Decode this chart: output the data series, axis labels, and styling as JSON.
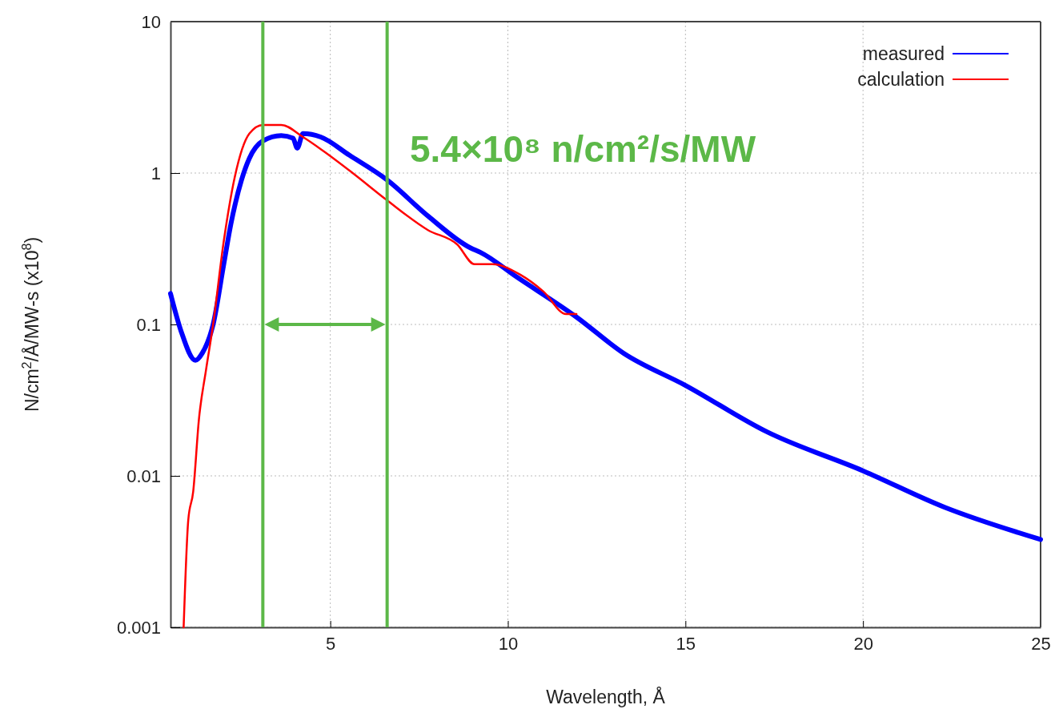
{
  "chart_data": {
    "type": "line",
    "xlabel": "Wavelength, Å",
    "ylabel": "N/cm$^{2}$/Å/MW-s (x10$^{8}$)",
    "log": "y",
    "grid": true,
    "legend": "top right",
    "line_style": "solid",
    "marker": "none",
    "xlim": [
      0.5,
      25
    ],
    "xticks": [
      5,
      10,
      15,
      20,
      25
    ],
    "ylim": [
      0.001,
      10
    ],
    "yticks": [
      0.001,
      0.01,
      0.1,
      1,
      10
    ],
    "series": [
      {
        "name": "measured",
        "color": "#0000ff",
        "x": [
          0.5,
          0.8,
          1.2,
          1.4,
          1.7,
          2.0,
          2.2,
          2.5,
          2.72,
          3.1,
          3.62,
          3.95,
          4.07,
          4.23,
          4.73,
          5.54,
          6.6,
          7.75,
          8.95,
          9.22,
          10.26,
          11.93,
          13.26,
          15,
          17.3,
          20,
          22.3,
          25
        ],
        "values": [
          0.16,
          0.09,
          0.058,
          0.065,
          0.1,
          0.25,
          0.46,
          0.9,
          1.25,
          1.63,
          1.77,
          1.7,
          1.46,
          1.82,
          1.73,
          1.31,
          0.9,
          0.52,
          0.32,
          0.3,
          0.205,
          0.112,
          0.0645,
          0.0396,
          0.0195,
          0.0108,
          0.0062,
          0.0038
        ]
      },
      {
        "name": "calculation",
        "color": "#ff0000",
        "x": [
          0.87,
          1.0,
          1.14,
          1.3,
          1.5,
          1.7,
          2.0,
          2.31,
          2.72,
          3.1,
          3.62,
          4.23,
          4.82,
          5.63,
          6.6,
          7.75,
          8.57,
          9.06,
          9.56,
          10.35,
          11.0,
          11.64,
          11.93
        ],
        "values": [
          0.001,
          0.0051,
          0.0079,
          0.0236,
          0.05,
          0.1,
          0.355,
          0.94,
          1.82,
          2.08,
          2.08,
          1.73,
          1.39,
          1.0,
          0.66,
          0.42,
          0.338,
          0.25,
          0.25,
          0.213,
          0.165,
          0.117,
          0.117
        ]
      }
    ],
    "ref_lines": [
      {
        "axis": "x",
        "value": 3.1,
        "color": "#5cb848"
      },
      {
        "axis": "x",
        "value": 6.6,
        "color": "#5cb848"
      }
    ],
    "annotations": [
      "5.4×10⁸ n/cm²/s/MW"
    ]
  }
}
